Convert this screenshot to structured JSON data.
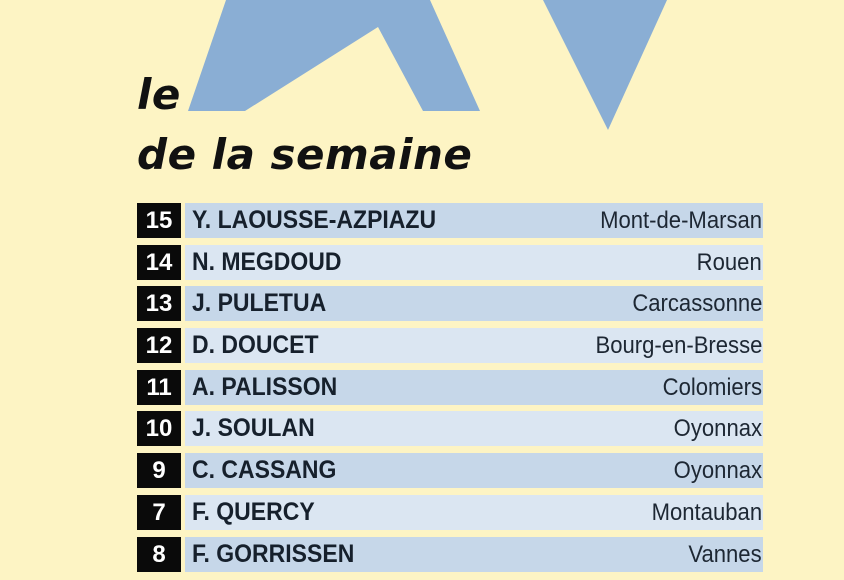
{
  "title": {
    "line1": "le",
    "line2": "de la semaine"
  },
  "logo": {
    "text": "XV",
    "color": "#8aaed4"
  },
  "players": [
    {
      "number": "15",
      "name": "Y. LAOUSSE-AZPIAZU",
      "club": "Mont-de-Marsan"
    },
    {
      "number": "14",
      "name": "N. MEGDOUD",
      "club": "Rouen"
    },
    {
      "number": "13",
      "name": "J. PULETUA",
      "club": "Carcassonne"
    },
    {
      "number": "12",
      "name": "D. DOUCET",
      "club": "Bourg-en-Bresse"
    },
    {
      "number": "11",
      "name": "A. PALISSON",
      "club": "Colomiers"
    },
    {
      "number": "10",
      "name": "J. SOULAN",
      "club": "Oyonnax"
    },
    {
      "number": "9",
      "name": "C. CASSANG",
      "club": "Oyonnax"
    },
    {
      "number": "7",
      "name": "F. QUERCY",
      "club": "Montauban"
    },
    {
      "number": "8",
      "name": "F. GORRISSEN",
      "club": "Vannes"
    }
  ],
  "colors": {
    "background": "#fdf4c4",
    "number_box": "#0a0a0a",
    "row_dark": "#c6d7e9",
    "row_light": "#dbe6f2"
  }
}
